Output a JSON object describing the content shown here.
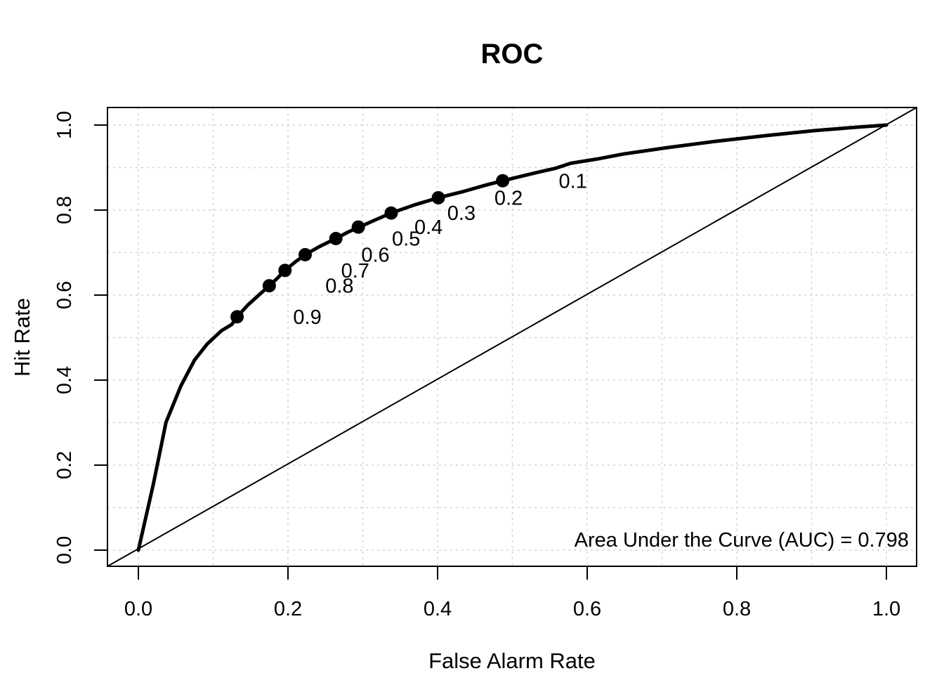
{
  "title": "ROC",
  "colors": {
    "foreground": "#000000",
    "background": "#ffffff",
    "grid": "#d4d4d4"
  },
  "chart_data": {
    "type": "line",
    "title": "ROC",
    "xlabel": "False Alarm Rate",
    "ylabel": "Hit Rate",
    "xlim": [
      0,
      1
    ],
    "ylim": [
      0,
      1
    ],
    "xticks": [
      0.0,
      0.2,
      0.4,
      0.6,
      0.8,
      1.0
    ],
    "yticks": [
      0.0,
      0.2,
      0.4,
      0.6,
      0.8,
      1.0
    ],
    "xtick_labels": [
      "0.0",
      "0.2",
      "0.4",
      "0.6",
      "0.8",
      "1.0"
    ],
    "ytick_labels": [
      "0.0",
      "0.2",
      "0.4",
      "0.6",
      "0.8",
      "1.0"
    ],
    "grid": {
      "on": true,
      "step": 0.1,
      "style": "dashed",
      "color": "#d4d4d4"
    },
    "legend": "none",
    "series": [
      {
        "name": "roc-curve",
        "style": "thick-solid",
        "x": [
          0,
          0.02,
          0.037,
          0.057,
          0.075,
          0.092,
          0.111,
          0.125,
          0.132,
          0.146,
          0.161,
          0.175,
          0.186,
          0.196,
          0.209,
          0.223,
          0.242,
          0.264,
          0.28,
          0.294,
          0.317,
          0.338,
          0.369,
          0.401,
          0.435,
          0.465,
          0.487,
          0.529,
          0.557,
          0.578,
          0.613,
          0.649,
          0.707,
          0.773,
          0.838,
          0.904,
          0.961,
          1.0
        ],
        "y": [
          0,
          0.155,
          0.301,
          0.387,
          0.447,
          0.485,
          0.516,
          0.531,
          0.549,
          0.576,
          0.6,
          0.622,
          0.64,
          0.658,
          0.677,
          0.695,
          0.714,
          0.733,
          0.748,
          0.759,
          0.777,
          0.793,
          0.812,
          0.829,
          0.844,
          0.859,
          0.869,
          0.887,
          0.898,
          0.91,
          0.92,
          0.932,
          0.947,
          0.962,
          0.975,
          0.987,
          0.995,
          1.0
        ]
      },
      {
        "name": "chance-diagonal",
        "style": "thin-solid",
        "intercept": 0,
        "slope": 1
      }
    ],
    "threshold_points": [
      {
        "label": "0.1",
        "x": 0.487,
        "y": 0.869
      },
      {
        "label": "0.2",
        "x": 0.401,
        "y": 0.829
      },
      {
        "label": "0.3",
        "x": 0.338,
        "y": 0.793
      },
      {
        "label": "0.4",
        "x": 0.294,
        "y": 0.76
      },
      {
        "label": "0.5",
        "x": 0.264,
        "y": 0.733
      },
      {
        "label": "0.6",
        "x": 0.223,
        "y": 0.695
      },
      {
        "label": "0.7",
        "x": 0.196,
        "y": 0.658
      },
      {
        "label": "0.8",
        "x": 0.175,
        "y": 0.622
      },
      {
        "label": "0.9",
        "x": 0.132,
        "y": 0.549
      }
    ],
    "annotation": {
      "text": "Area Under the Curve (AUC) = 0.798",
      "x": 1.03,
      "y": 0.025,
      "align": "right"
    },
    "auc": 0.798
  }
}
